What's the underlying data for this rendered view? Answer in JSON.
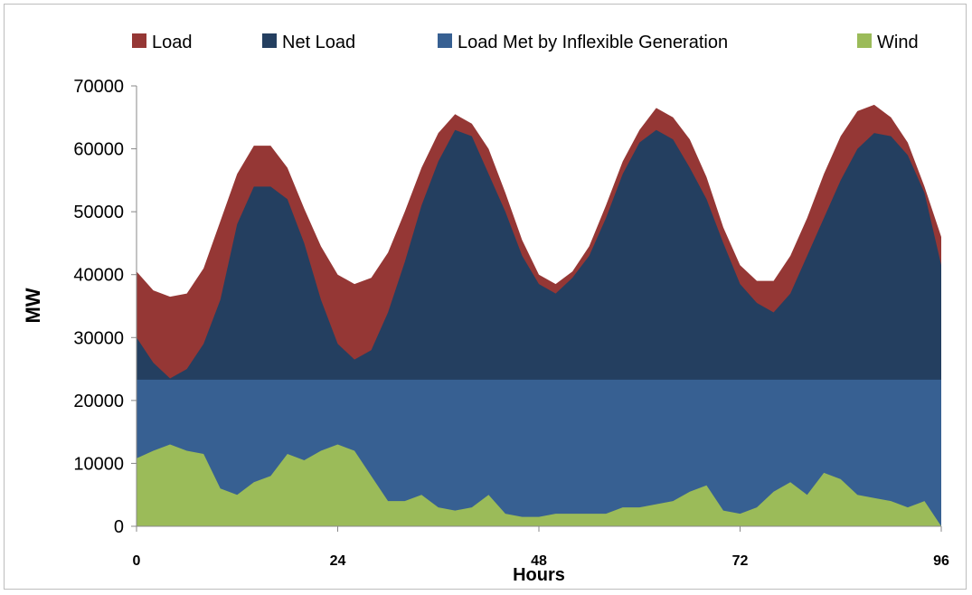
{
  "chart_data": {
    "type": "area",
    "title": "",
    "xlabel": "Hours",
    "ylabel": "MW",
    "xlim": [
      0,
      96
    ],
    "ylim": [
      0,
      70000
    ],
    "x_ticks": [
      0,
      24,
      48,
      72,
      96
    ],
    "x_tick_labels": [
      "0",
      "24",
      "48",
      "72",
      "96"
    ],
    "y_ticks": [
      0,
      10000,
      20000,
      30000,
      40000,
      50000,
      60000,
      70000
    ],
    "y_tick_labels": [
      "0",
      "10000",
      "20000",
      "30000",
      "40000",
      "50000",
      "60000",
      "70000"
    ],
    "grid": false,
    "legend_position": "top",
    "x": [
      0,
      2,
      4,
      6,
      8,
      10,
      12,
      14,
      16,
      18,
      20,
      22,
      24,
      26,
      28,
      30,
      32,
      34,
      36,
      38,
      40,
      42,
      44,
      46,
      48,
      50,
      52,
      54,
      56,
      58,
      60,
      62,
      64,
      66,
      68,
      70,
      72,
      74,
      76,
      78,
      80,
      82,
      84,
      86,
      88,
      90,
      92,
      94,
      96
    ],
    "series": [
      {
        "name": "Load",
        "color": "#953735",
        "values": [
          40500,
          37500,
          36500,
          37000,
          41000,
          48500,
          56000,
          60500,
          60500,
          57000,
          50500,
          44500,
          40000,
          38500,
          39500,
          43500,
          50000,
          57000,
          62500,
          65500,
          64000,
          60000,
          53000,
          45500,
          40000,
          38500,
          40500,
          44500,
          51000,
          58000,
          63000,
          66500,
          65000,
          61500,
          55500,
          47500,
          41500,
          39000,
          39000,
          43000,
          49000,
          56000,
          62000,
          66000,
          67000,
          65000,
          61000,
          54000,
          46000
        ]
      },
      {
        "name": "Net Load",
        "color": "#243F60",
        "values": [
          30000,
          26000,
          23500,
          25000,
          29000,
          36000,
          48000,
          54000,
          54000,
          52000,
          45000,
          36000,
          29000,
          26500,
          28000,
          34000,
          42000,
          51000,
          58000,
          63000,
          62000,
          56000,
          50000,
          43000,
          38500,
          37000,
          39500,
          43000,
          49000,
          56000,
          61000,
          63000,
          61500,
          57000,
          52000,
          45000,
          38500,
          35500,
          34000,
          37000,
          43000,
          49000,
          55000,
          60000,
          62500,
          62000,
          59000,
          53000,
          41500
        ]
      },
      {
        "name": "Load Met by Inflexible Generation",
        "color": "#376092",
        "values": [
          23300,
          23300,
          23300,
          23300,
          23300,
          23300,
          23300,
          23300,
          23300,
          23300,
          23300,
          23300,
          23300,
          23300,
          23300,
          23300,
          23300,
          23300,
          23300,
          23300,
          23300,
          23300,
          23300,
          23300,
          23300,
          23300,
          23300,
          23300,
          23300,
          23300,
          23300,
          23300,
          23300,
          23300,
          23300,
          23300,
          23300,
          23300,
          23300,
          23300,
          23300,
          23300,
          23300,
          23300,
          23300,
          23300,
          23300,
          23300,
          23300
        ]
      },
      {
        "name": "Wind",
        "color": "#9BBB59",
        "values": [
          10800,
          12000,
          13000,
          12000,
          11500,
          6000,
          5000,
          7000,
          8000,
          11500,
          10500,
          12000,
          13000,
          12000,
          8000,
          4000,
          4000,
          5000,
          3000,
          2500,
          3000,
          5000,
          2000,
          1500,
          1500,
          2000,
          2000,
          2000,
          2000,
          3000,
          3000,
          3500,
          4000,
          5500,
          6500,
          2500,
          2000,
          3000,
          5500,
          7000,
          5000,
          8500,
          7500,
          5000,
          4500,
          4000,
          3000,
          4000,
          0
        ]
      }
    ]
  }
}
